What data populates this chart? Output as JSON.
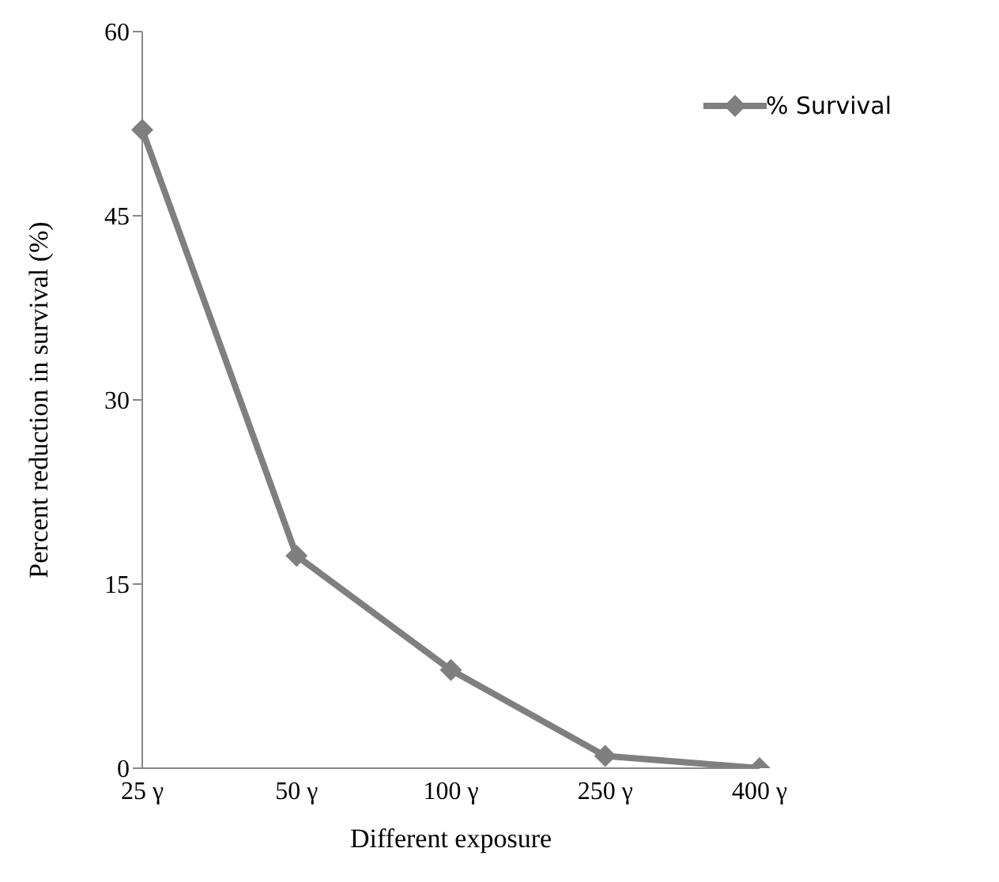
{
  "chart_data": {
    "type": "line",
    "xlabel": "Different exposure",
    "ylabel": "Percent reduction in survival (%)",
    "categories": [
      "25 γ",
      "50 γ",
      "100 γ",
      "250 γ",
      "400 γ"
    ],
    "series": [
      {
        "name": "% Survival",
        "color": "#7f7f7f",
        "values": [
          52,
          17.3,
          8,
          1,
          0
        ]
      }
    ],
    "ylim": [
      0,
      60
    ],
    "yticks": [
      0,
      15,
      30,
      45,
      60
    ],
    "grid": false,
    "legend": "top right",
    "marker": "diamond",
    "line_style": "solid"
  }
}
